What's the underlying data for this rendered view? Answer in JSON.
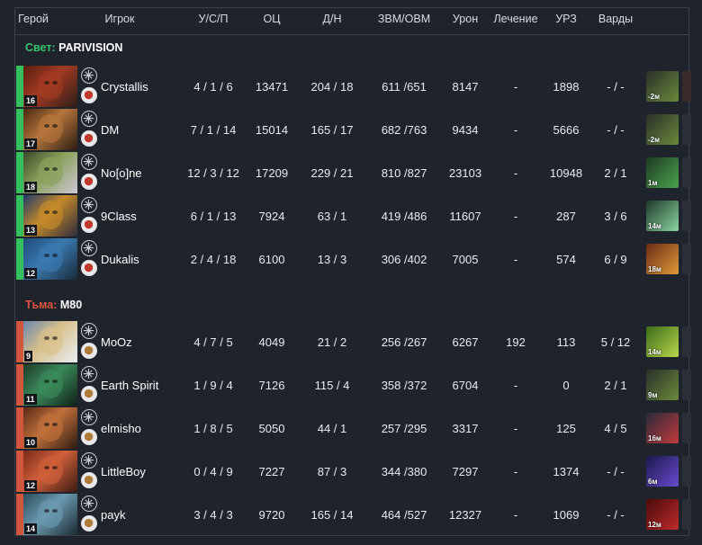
{
  "columns": [
    "Герой",
    "Игрок",
    "У/С/П",
    "ОЦ",
    "Д/Н",
    "ЗВМ/ОВМ",
    "Урон",
    "Лечение",
    "УРЗ",
    "Варды"
  ],
  "teams": [
    {
      "side": "Свет:",
      "name": "PARIVISION",
      "bar_color": "#34c05c",
      "rows": [
        {
          "level": "16",
          "player": "Crystallis",
          "kda": "4 / 1 / 6",
          "nw": "13471",
          "lh": "204 / 18",
          "gpm": "611 /651",
          "dmg": "8147",
          "heal": "-",
          "bld": "1898",
          "wards": "- / -",
          "item_time": "-2м",
          "hero_colors": [
            "#5a1f14",
            "#a33a22",
            "#2b1d18"
          ],
          "item_colors": [
            "#2a2f2a",
            "#6a8a3a"
          ],
          "item2": "#3a2b2b"
        },
        {
          "level": "17",
          "player": "DM",
          "kda": "7 / 1 / 14",
          "nw": "15014",
          "lh": "165 / 17",
          "gpm": "682 /763",
          "dmg": "9434",
          "heal": "-",
          "bld": "5666",
          "wards": "- / -",
          "item_time": "-2м",
          "hero_colors": [
            "#4a2a14",
            "#b5743c",
            "#2a1c12"
          ],
          "item_colors": [
            "#2a2f2a",
            "#6a8a3a"
          ],
          "item2": "#2b2f3a"
        },
        {
          "level": "18",
          "player": "No[o]ne",
          "kda": "12 / 3 / 12",
          "nw": "17209",
          "lh": "229 / 21",
          "gpm": "810 /827",
          "dmg": "23103",
          "heal": "-",
          "bld": "10948",
          "wards": "2 / 1",
          "item_time": "1м",
          "hero_colors": [
            "#3a4a2a",
            "#8aa15a",
            "#cfc6d6"
          ],
          "item_colors": [
            "#1e3a22",
            "#4aa34e"
          ],
          "item2": "#2a2f3a"
        },
        {
          "level": "13",
          "player": "9Class",
          "kda": "6 / 1 / 13",
          "nw": "7924",
          "lh": "63 / 1",
          "gpm": "419 /486",
          "dmg": "11607",
          "heal": "-",
          "bld": "287",
          "wards": "3 / 6",
          "item_time": "14м",
          "hero_colors": [
            "#1f3a6a",
            "#c58a2a",
            "#2b2a3a"
          ],
          "item_colors": [
            "#1f3a2a",
            "#8ad4a0"
          ],
          "item2": "#2a2f3a"
        },
        {
          "level": "12",
          "player": "Dukalis",
          "kda": "2 / 4 / 18",
          "nw": "6100",
          "lh": "13 / 3",
          "gpm": "306 /402",
          "dmg": "7005",
          "heal": "-",
          "bld": "574",
          "wards": "6 / 9",
          "item_time": "18м",
          "hero_colors": [
            "#1f4a7a",
            "#3a7ab0",
            "#1a2a3a"
          ],
          "item_colors": [
            "#6a2a14",
            "#e09a3a"
          ],
          "item2": "#2a2f3a"
        }
      ]
    },
    {
      "side": "Тьма:",
      "name": "M80",
      "bar_color": "#d2553e",
      "rows": [
        {
          "level": "9",
          "player": "MoOz",
          "kda": "4 / 7 / 5",
          "nw": "4049",
          "lh": "21 / 2",
          "gpm": "256 /267",
          "dmg": "6267",
          "heal": "192",
          "bld": "113",
          "wards": "5 / 12",
          "item_time": "14м",
          "hero_colors": [
            "#6a88b0",
            "#d8c08a",
            "#e8eef6"
          ],
          "item_colors": [
            "#3a6a1a",
            "#b8d84a"
          ],
          "item2": "#2a2f3a"
        },
        {
          "level": "11",
          "player": "Earth Spirit",
          "kda": "1 / 9 / 4",
          "nw": "7126",
          "lh": "115 / 4",
          "gpm": "358 /372",
          "dmg": "6704",
          "heal": "-",
          "bld": "0",
          "wards": "2 / 1",
          "item_time": "9м",
          "hero_colors": [
            "#1f3a2a",
            "#3a8a5a",
            "#102018"
          ],
          "item_colors": [
            "#2a2f2a",
            "#6a8a3a"
          ],
          "item2": "#2a2f3a"
        },
        {
          "level": "10",
          "player": "elmisho",
          "kda": "1 / 8 / 5",
          "nw": "5050",
          "lh": "44 / 1",
          "gpm": "257 /295",
          "dmg": "3317",
          "heal": "-",
          "bld": "125",
          "wards": "4 / 5",
          "item_time": "16м",
          "hero_colors": [
            "#5a2a1a",
            "#c0703a",
            "#2a1a12"
          ],
          "item_colors": [
            "#2a2a3a",
            "#c03a3a"
          ],
          "item2": "#2a2f3a"
        },
        {
          "level": "12",
          "player": "LittleBoy",
          "kda": "0 / 4 / 9",
          "nw": "7227",
          "lh": "87 / 3",
          "gpm": "344 /380",
          "dmg": "7297",
          "heal": "-",
          "bld": "1374",
          "wards": "- / -",
          "item_time": "6м",
          "hero_colors": [
            "#7a2a1a",
            "#d0603a",
            "#3a1a12"
          ],
          "item_colors": [
            "#1a1a4a",
            "#6a4ad0"
          ],
          "item2": "#2a2f3a"
        },
        {
          "level": "14",
          "player": "payk",
          "kda": "3 / 4 / 3",
          "nw": "9720",
          "lh": "165 / 14",
          "gpm": "464 /527",
          "dmg": "12327",
          "heal": "-",
          "bld": "1069",
          "wards": "- / -",
          "item_time": "12м",
          "hero_colors": [
            "#2a4a5a",
            "#6a9ab0",
            "#1a2a30"
          ],
          "item_colors": [
            "#4a0a0a",
            "#c02a2a"
          ],
          "item2": "#2a2f3a"
        }
      ]
    }
  ]
}
